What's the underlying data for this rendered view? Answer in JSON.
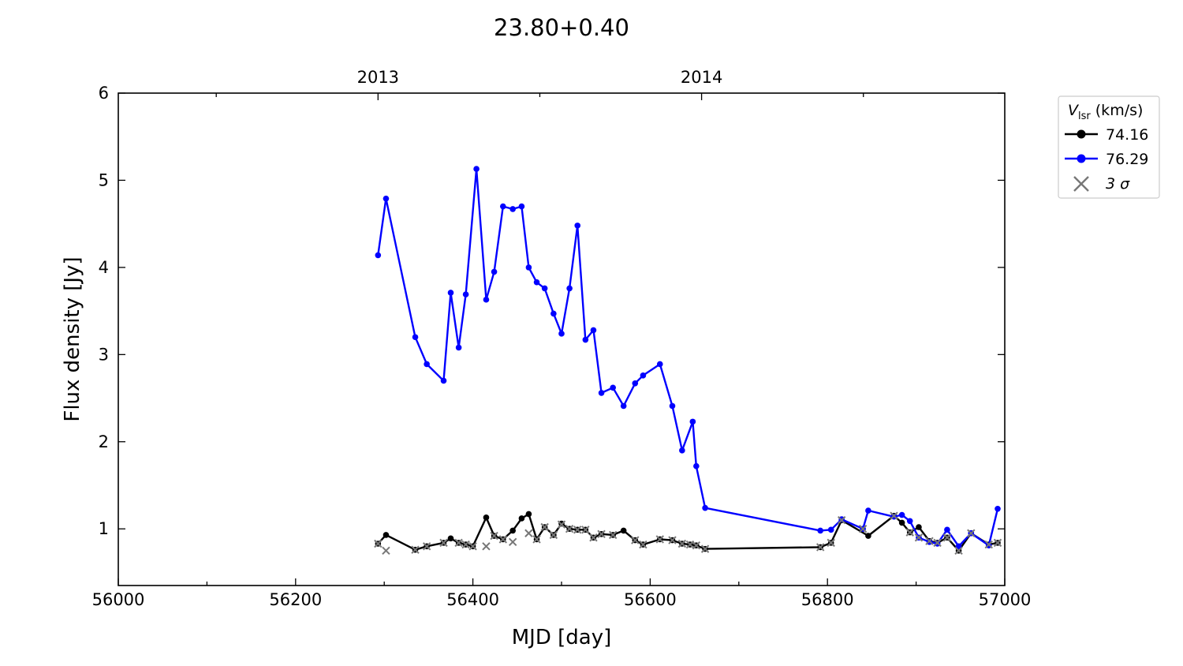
{
  "chart_data": {
    "type": "line",
    "title": "23.80+0.40",
    "xlabel": "MJD [day]",
    "ylabel": "Flux density [Jy]",
    "xlim": [
      56000,
      57000
    ],
    "ylim": [
      0.35,
      6
    ],
    "x_ticks": [
      "56000",
      "56200",
      "56400",
      "56600",
      "56800",
      "57000"
    ],
    "y_ticks": [
      "1",
      "2",
      "3",
      "4",
      "5",
      "6"
    ],
    "top_axis_ticks": [
      {
        "label": "2013",
        "mjd": 56293
      },
      {
        "label": "2014",
        "mjd": 56658
      }
    ],
    "grid": false,
    "legend": {
      "position": "outside-top-right",
      "title_symbol": "V",
      "title_subscript": "lsr",
      "title_suffix": " (km/s)",
      "entries": [
        "74.16",
        "76.29"
      ],
      "sigma_label": "3 σ"
    },
    "series": [
      {
        "name": "74.16",
        "color": "#000000",
        "x": [
          56293,
          56302,
          56335,
          56348,
          56367,
          56375,
          56384,
          56392,
          56400,
          56415,
          56424,
          56434,
          56445,
          56455,
          56463,
          56472,
          56481,
          56491,
          56500,
          56509,
          56518,
          56527,
          56536,
          56545,
          56558,
          56570,
          56583,
          56592,
          56611,
          56625,
          56636,
          56645,
          56652,
          56662,
          56792,
          56804,
          56816,
          56846,
          56875,
          56884,
          56893,
          56903,
          56915,
          56924,
          56935,
          56948,
          56962,
          56982,
          56992
        ],
        "y": [
          0.83,
          0.93,
          0.76,
          0.8,
          0.84,
          0.89,
          0.84,
          0.82,
          0.8,
          1.13,
          0.92,
          0.88,
          0.98,
          1.12,
          1.17,
          0.88,
          1.02,
          0.93,
          1.06,
          1.0,
          0.99,
          0.99,
          0.9,
          0.94,
          0.93,
          0.98,
          0.87,
          0.82,
          0.88,
          0.87,
          0.83,
          0.82,
          0.81,
          0.77,
          0.79,
          0.84,
          1.1,
          0.92,
          1.15,
          1.07,
          0.96,
          1.02,
          0.86,
          0.84,
          0.9,
          0.75,
          0.95,
          0.82,
          0.84
        ]
      },
      {
        "name": "76.29",
        "color": "#0000ff",
        "x": [
          56293,
          56302,
          56335,
          56348,
          56367,
          56375,
          56384,
          56392,
          56404,
          56415,
          56424,
          56434,
          56445,
          56455,
          56463,
          56472,
          56481,
          56491,
          56500,
          56509,
          56518,
          56527,
          56536,
          56545,
          56558,
          56570,
          56583,
          56592,
          56611,
          56625,
          56636,
          56648,
          56652,
          56662,
          56792,
          56804,
          56816,
          56840,
          56846,
          56875,
          56884,
          56893,
          56903,
          56915,
          56924,
          56935,
          56948,
          56962,
          56982,
          56992
        ],
        "y": [
          4.14,
          4.79,
          3.2,
          2.89,
          2.7,
          3.71,
          3.08,
          3.69,
          5.13,
          3.63,
          3.95,
          4.7,
          4.67,
          4.7,
          4.0,
          3.83,
          3.76,
          3.47,
          3.24,
          3.76,
          4.48,
          3.17,
          3.28,
          2.56,
          2.62,
          2.41,
          2.67,
          2.76,
          2.89,
          2.41,
          1.9,
          2.23,
          1.72,
          1.24,
          0.98,
          0.99,
          1.11,
          1.0,
          1.21,
          1.14,
          1.16,
          1.09,
          0.9,
          0.85,
          0.83,
          0.99,
          0.8,
          0.95,
          0.81,
          1.23
        ]
      }
    ],
    "sigma_markers": {
      "name": "3 σ",
      "color": "#777777",
      "x": [
        56293,
        56302,
        56335,
        56348,
        56367,
        56384,
        56392,
        56400,
        56415,
        56424,
        56434,
        56445,
        56463,
        56472,
        56481,
        56491,
        56500,
        56509,
        56518,
        56527,
        56536,
        56545,
        56558,
        56583,
        56592,
        56611,
        56625,
        56636,
        56645,
        56652,
        56662,
        56792,
        56804,
        56816,
        56840,
        56875,
        56893,
        56903,
        56915,
        56924,
        56935,
        56948,
        56962,
        56982,
        56992
      ],
      "y": [
        0.83,
        0.75,
        0.76,
        0.8,
        0.84,
        0.84,
        0.82,
        0.8,
        0.8,
        0.92,
        0.88,
        0.85,
        0.95,
        0.88,
        1.02,
        0.93,
        1.05,
        1.0,
        0.99,
        0.99,
        0.9,
        0.94,
        0.93,
        0.87,
        0.82,
        0.88,
        0.87,
        0.83,
        0.82,
        0.81,
        0.77,
        0.79,
        0.84,
        1.1,
        1.0,
        1.15,
        0.96,
        0.9,
        0.86,
        0.84,
        0.9,
        0.75,
        0.95,
        0.82,
        0.84
      ]
    }
  }
}
